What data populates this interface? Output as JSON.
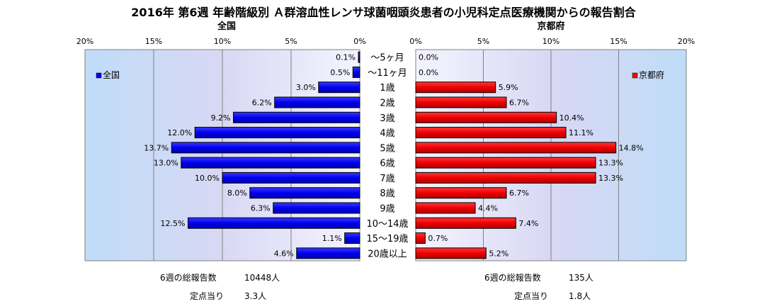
{
  "title": "2016年 第6週 年齢階級別 Ａ群溶血性レンサ球菌咽頭炎患者の小児科定点医療機関からの報告割合",
  "chart_data": [
    {
      "type": "bar",
      "orientation": "horizontal",
      "title": "全国",
      "legend": "全国",
      "legend_position": "top-left",
      "x_direction": "reversed",
      "xlim": [
        0,
        20
      ],
      "xticks": [
        "0%",
        "5%",
        "10%",
        "15%",
        "20%"
      ],
      "color": "#0000ff",
      "categories": [
        "～5ヶ月",
        "～11ヶ月",
        "1歳",
        "2歳",
        "3歳",
        "4歳",
        "5歳",
        "6歳",
        "7歳",
        "8歳",
        "9歳",
        "10～14歳",
        "15～19歳",
        "20歳以上"
      ],
      "values": [
        0.1,
        0.5,
        3.0,
        6.2,
        9.2,
        12.0,
        13.7,
        13.0,
        10.0,
        8.0,
        6.3,
        12.5,
        1.1,
        4.6
      ],
      "labels": [
        "0.1%",
        "0.5%",
        "3.0%",
        "6.2%",
        "9.2%",
        "12.0%",
        "13.7%",
        "13.0%",
        "10.0%",
        "8.0%",
        "6.3%",
        "12.5%",
        "1.1%",
        "4.6%"
      ],
      "grid": true
    },
    {
      "type": "bar",
      "orientation": "horizontal",
      "title": "京都府",
      "legend": "京都府",
      "legend_position": "top-right",
      "xlim": [
        0,
        20
      ],
      "xticks": [
        "0%",
        "5%",
        "10%",
        "15%",
        "20%"
      ],
      "color": "#ff0000",
      "categories": [
        "～5ヶ月",
        "～11ヶ月",
        "1歳",
        "2歳",
        "3歳",
        "4歳",
        "5歳",
        "6歳",
        "7歳",
        "8歳",
        "9歳",
        "10～14歳",
        "15～19歳",
        "20歳以上"
      ],
      "values": [
        0.0,
        0.0,
        5.9,
        6.7,
        10.4,
        11.1,
        14.8,
        13.3,
        13.3,
        6.7,
        4.4,
        7.4,
        0.7,
        5.2
      ],
      "labels": [
        "0.0%",
        "0.0%",
        "5.9%",
        "6.7%",
        "10.4%",
        "11.1%",
        "14.8%",
        "13.3%",
        "13.3%",
        "6.7%",
        "4.4%",
        "7.4%",
        "0.7%",
        "5.2%"
      ],
      "grid": true
    }
  ],
  "summary": {
    "left": {
      "total_label": "6週の総報告数",
      "total_value": "10448人",
      "per_label": "定点当り",
      "per_value": "3.3人"
    },
    "right": {
      "total_label": "6週の総報告数",
      "total_value": "135人",
      "per_label": "定点当り",
      "per_value": "1.8人"
    }
  },
  "colors": {
    "plot_bg_edge": "#d0d4f0",
    "plot_bg_center": "#ffffff",
    "grid": "#808080",
    "left_bar": "#0000ff",
    "right_bar": "#ff0000"
  }
}
